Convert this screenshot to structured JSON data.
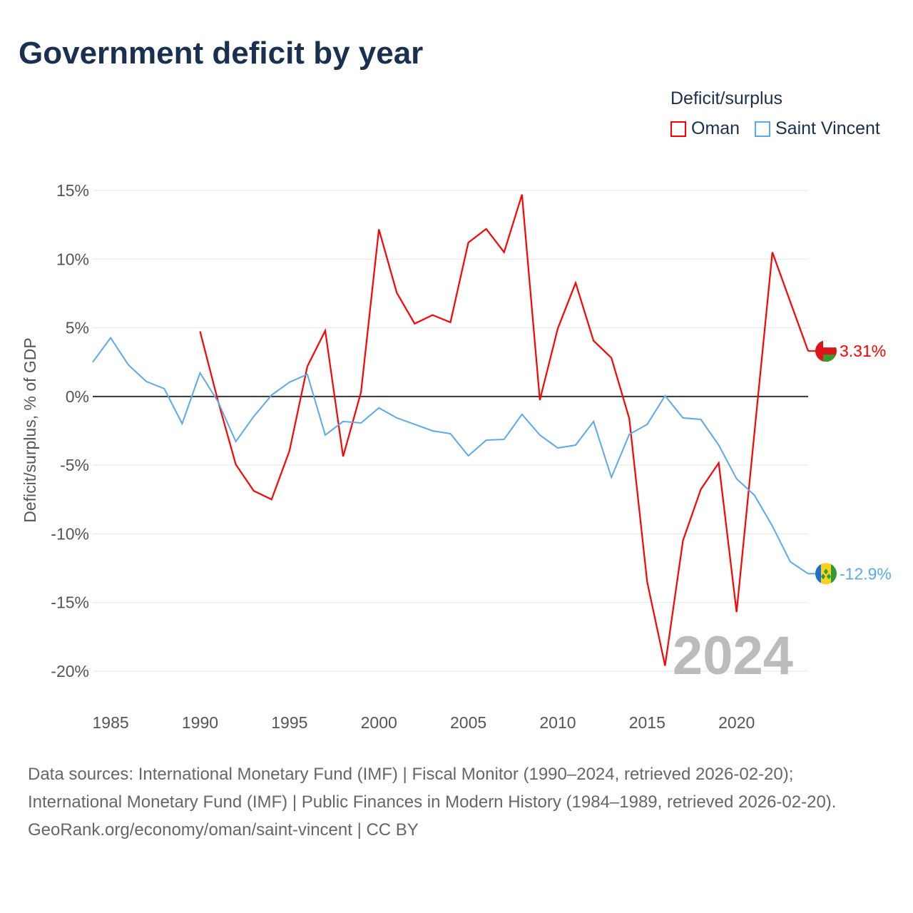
{
  "title": "Government deficit by year",
  "legend": {
    "title": "Deficit/surplus",
    "items": [
      {
        "name": "Oman",
        "color": "#ff0000"
      },
      {
        "name": "Saint Vincent",
        "color": "#5aa9ee"
      }
    ]
  },
  "chart_data": {
    "type": "line",
    "title": "Government deficit by year",
    "ylabel": "Deficit/surplus, % of GDP",
    "xlabel": "",
    "xlim": [
      1984,
      2024
    ],
    "ylim": [
      -20,
      15
    ],
    "x_ticks": [
      1985,
      1990,
      1995,
      2000,
      2005,
      2010,
      2015,
      2020
    ],
    "y_ticks": [
      {
        "v": 15,
        "label": "15%"
      },
      {
        "v": 10,
        "label": "10%"
      },
      {
        "v": 5,
        "label": "5%"
      },
      {
        "v": 0,
        "label": "0%"
      },
      {
        "v": -5,
        "label": "-5%"
      },
      {
        "v": -10,
        "label": "-10%"
      },
      {
        "v": -15,
        "label": "-15%"
      },
      {
        "v": -20,
        "label": "-20%"
      }
    ],
    "year_watermark": "2024",
    "series": [
      {
        "name": "Oman",
        "color": "#ff0000",
        "end_label": "3.31%",
        "x_start": 1990,
        "values": [
          4.74,
          -0.3,
          -4.95,
          -6.87,
          -7.5,
          -3.96,
          2.19,
          4.79,
          -4.37,
          0.31,
          12.17,
          7.55,
          5.3,
          5.93,
          5.4,
          11.2,
          12.2,
          10.5,
          14.7,
          -0.26,
          4.94,
          8.27,
          4.06,
          2.81,
          -1.61,
          -13.5,
          -19.6,
          -10.5,
          -6.76,
          -4.84,
          -15.7,
          -2.6,
          10.5,
          6.9,
          3.31
        ]
      },
      {
        "name": "Saint Vincent",
        "color": "#5aa9ee",
        "end_label": "-12.9%",
        "x_start": 1984,
        "values": [
          2.5,
          4.27,
          2.29,
          1.09,
          0.57,
          -1.98,
          1.72,
          -0.36,
          -3.28,
          -1.46,
          0.1,
          1.04,
          1.61,
          -2.81,
          -1.82,
          -1.93,
          -0.83,
          -1.56,
          -2.03,
          -2.5,
          -2.71,
          -4.32,
          -3.18,
          -3.12,
          -1.3,
          -2.81,
          -3.75,
          -3.54,
          -1.82,
          -5.89,
          -2.76,
          -2.03,
          0.05,
          -1.56,
          -1.67,
          -3.54,
          -5.99,
          -7.19,
          -9.43,
          -12.03,
          -12.9
        ]
      }
    ]
  },
  "sources": {
    "line1": "Data sources: International Monetary Fund (IMF) | Fiscal Monitor (1990–2024, retrieved 2026-02-20); International Monetary Fund (IMF) | Public Finances in Modern History (1984–1989, retrieved 2026-02-20).",
    "line2": "GeoRank.org/economy/oman/saint-vincent | CC BY"
  }
}
